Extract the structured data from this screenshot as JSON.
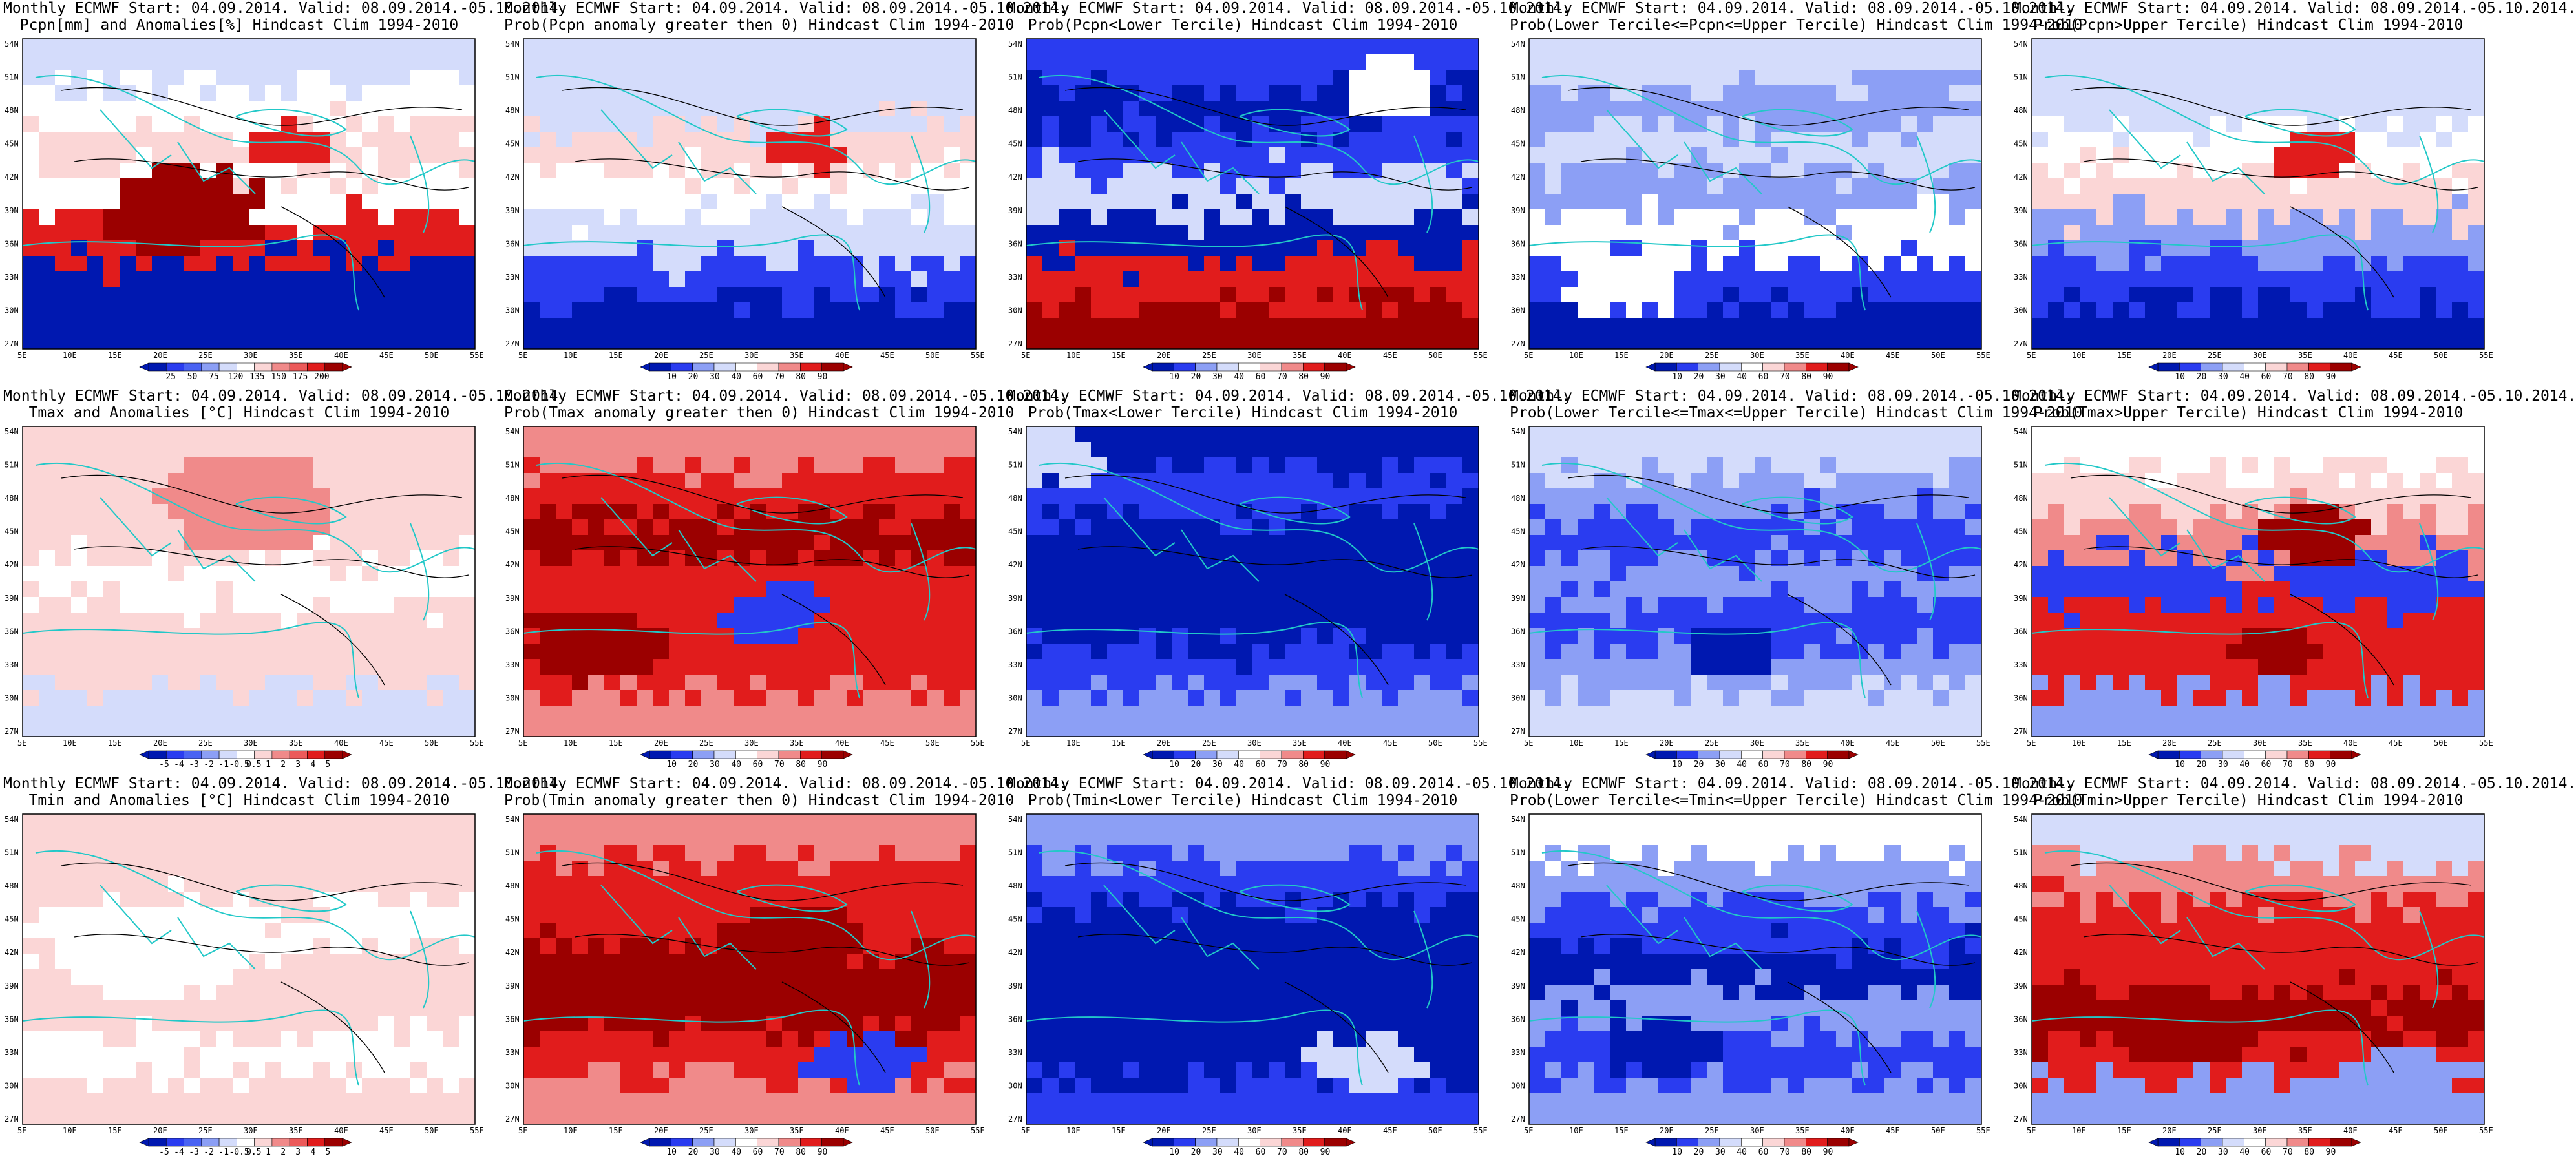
{
  "colors": {
    "dark_red": "#9b0000",
    "red": "#e11c1c",
    "light_red": "#f08a8a",
    "pale_red": "#fbd6d6",
    "white": "#ffffff",
    "pale_blue": "#d4dcfb",
    "light_blue": "#8c9ff5",
    "blue": "#2a3cf0",
    "dark_blue": "#0018b0",
    "coast": "#22c8c8",
    "contour": "#000000"
  },
  "lat_labels": [
    "54N",
    "51N",
    "48N",
    "45N",
    "42N",
    "39N",
    "36N",
    "33N",
    "30N",
    "27N"
  ],
  "lon_labels": [
    "5E",
    "10E",
    "15E",
    "20E",
    "25E",
    "30E",
    "35E",
    "40E",
    "45E",
    "50E",
    "55E"
  ],
  "rows": [
    {
      "name": "precip",
      "panels": [
        {
          "line1": "Monthly ECMWF Start: 04.09.2014. Valid: 08.09.2014.-05.10.2014.",
          "line2": "Pcpn[mm] and Anomalies[%] Hindcast Clim 1994-2010",
          "colorbar": [
            "25",
            "50",
            "75",
            "120",
            "135",
            "150",
            "175",
            "200"
          ],
          "palette": "anom",
          "pattern": "pcpn_anom"
        },
        {
          "line1": "Monthly ECMWF Start: 04.09.2014. Valid: 08.09.2014.-05.10.2014.",
          "line2": "Prob(Pcpn anomaly greater then 0) Hindcast Clim 1994-2010",
          "colorbar": [
            "10",
            "20",
            "30",
            "40",
            "60",
            "70",
            "80",
            "90"
          ],
          "palette": "prob",
          "pattern": "pcpn_pos"
        },
        {
          "line1": "Monthly ECMWF Start: 04.09.2014. Valid: 08.09.2014.-05.10.2014.",
          "line2": "Prob(Pcpn<Lower Tercile) Hindcast Clim 1994-2010",
          "colorbar": [
            "10",
            "20",
            "30",
            "40",
            "60",
            "70",
            "80",
            "90"
          ],
          "palette": "prob",
          "pattern": "pcpn_low"
        },
        {
          "line1": "Monthly ECMWF Start: 04.09.2014. Valid: 08.09.2014.-05.10.2014.",
          "line2": "Prob(Lower Tercile<=Pcpn<=Upper Tercile) Hindcast Clim 1994-2010",
          "colorbar": [
            "10",
            "20",
            "30",
            "40",
            "60",
            "70",
            "80",
            "90"
          ],
          "palette": "prob",
          "pattern": "pcpn_mid"
        },
        {
          "line1": "Monthly ECMWF Start: 04.09.2014. Valid: 08.09.2014.-05.10.2014.",
          "line2": "Prob(Pcpn>Upper Tercile) Hindcast Clim 1994-2010",
          "colorbar": [
            "10",
            "20",
            "30",
            "40",
            "60",
            "70",
            "80",
            "90"
          ],
          "palette": "prob",
          "pattern": "pcpn_up"
        }
      ]
    },
    {
      "name": "tmax",
      "panels": [
        {
          "line1": "Monthly ECMWF Start: 04.09.2014. Valid: 08.09.2014.-05.10.2014.",
          "line2": "Tmax and Anomalies [°C] Hindcast Clim 1994-2010",
          "colorbar": [
            "-5",
            "-4",
            "-3",
            "-2",
            "-1",
            "-0.5",
            "0.5",
            "1",
            "2",
            "3",
            "4",
            "5"
          ],
          "palette": "tanom",
          "pattern": "tmax_anom"
        },
        {
          "line1": "Monthly ECMWF Start: 04.09.2014. Valid: 08.09.2014.-05.10.2014.",
          "line2": "Prob(Tmax anomaly greater then 0) Hindcast Clim 1994-2010",
          "colorbar": [
            "10",
            "20",
            "30",
            "40",
            "60",
            "70",
            "80",
            "90"
          ],
          "palette": "prob",
          "pattern": "tmax_pos"
        },
        {
          "line1": "Monthly ECMWF Start: 04.09.2014. Valid: 08.09.2014.-05.10.2014.",
          "line2": "Prob(Tmax<Lower Tercile) Hindcast Clim 1994-2010",
          "colorbar": [
            "10",
            "20",
            "30",
            "40",
            "60",
            "70",
            "80",
            "90"
          ],
          "palette": "prob",
          "pattern": "tmax_low"
        },
        {
          "line1": "Monthly ECMWF Start: 04.09.2014. Valid: 08.09.2014.-05.10.2014.",
          "line2": "Prob(Lower Tercile<=Tmax<=Upper Tercile) Hindcast Clim 1994-2010",
          "colorbar": [
            "10",
            "20",
            "30",
            "40",
            "60",
            "70",
            "80",
            "90"
          ],
          "palette": "prob",
          "pattern": "tmax_mid"
        },
        {
          "line1": "Monthly ECMWF Start: 04.09.2014. Valid: 08.09.2014.-05.10.2014.",
          "line2": "Prob(Tmax>Upper Tercile) Hindcast Clim 1994-2010",
          "colorbar": [
            "10",
            "20",
            "30",
            "40",
            "60",
            "70",
            "80",
            "90"
          ],
          "palette": "prob",
          "pattern": "tmax_up"
        }
      ]
    },
    {
      "name": "tmin",
      "panels": [
        {
          "line1": "Monthly ECMWF Start: 04.09.2014. Valid: 08.09.2014.-05.10.2014.",
          "line2": "Tmin and Anomalies [°C] Hindcast Clim 1994-2010",
          "colorbar": [
            "-5",
            "-4",
            "-3",
            "-2",
            "-1",
            "-0.5",
            "0.5",
            "1",
            "2",
            "3",
            "4",
            "5"
          ],
          "palette": "tanom",
          "pattern": "tmin_anom"
        },
        {
          "line1": "Monthly ECMWF Start: 04.09.2014. Valid: 08.09.2014.-05.10.2014.",
          "line2": "Prob(Tmin anomaly greater then 0) Hindcast Clim 1994-2010",
          "colorbar": [
            "10",
            "20",
            "30",
            "40",
            "60",
            "70",
            "80",
            "90"
          ],
          "palette": "prob",
          "pattern": "tmin_pos"
        },
        {
          "line1": "Monthly ECMWF Start: 04.09.2014. Valid: 08.09.2014.-05.10.2014.",
          "line2": "Prob(Tmin<Lower Tercile) Hindcast Clim 1994-2010",
          "colorbar": [
            "10",
            "20",
            "30",
            "40",
            "60",
            "70",
            "80",
            "90"
          ],
          "palette": "prob",
          "pattern": "tmin_low"
        },
        {
          "line1": "Monthly ECMWF Start: 04.09.2014. Valid: 08.09.2014.-05.10.2014.",
          "line2": "Prob(Lower Tercile<=Tmin<=Upper Tercile) Hindcast Clim 1994-2010",
          "colorbar": [
            "10",
            "20",
            "30",
            "40",
            "60",
            "70",
            "80",
            "90"
          ],
          "palette": "prob",
          "pattern": "tmin_mid"
        },
        {
          "line1": "Monthly ECMWF Start: 04.09.2014. Valid: 08.09.2014.-05.10.2014.",
          "line2": "Prob(Tmin>Upper Tercile) Hindcast Clim 1994-2010",
          "colorbar": [
            "10",
            "20",
            "30",
            "40",
            "60",
            "70",
            "80",
            "90"
          ],
          "palette": "prob",
          "pattern": "tmin_up"
        }
      ]
    }
  ]
}
